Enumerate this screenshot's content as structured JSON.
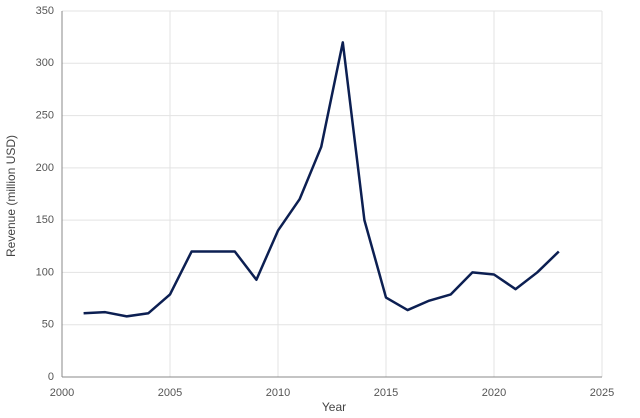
{
  "chart_data": {
    "type": "line",
    "x_label": "Year",
    "y_label": "Revenue (million USD)",
    "x": [
      2001,
      2002,
      2003,
      2004,
      2005,
      2006,
      2007,
      2008,
      2009,
      2010,
      2011,
      2012,
      2013,
      2014,
      2015,
      2016,
      2017,
      2018,
      2019,
      2020,
      2021,
      2022,
      2023
    ],
    "values": [
      61,
      62,
      58,
      61,
      79,
      120,
      120,
      120,
      93,
      140,
      170,
      220,
      320,
      150,
      76,
      64,
      73,
      79,
      100,
      98,
      84,
      100,
      120
    ],
    "color": "#0c1f52",
    "xlim": [
      2000,
      2025
    ],
    "xticks": [
      2000,
      2005,
      2010,
      2015,
      2020,
      2025
    ],
    "ylim": [
      0,
      350
    ],
    "yticks": [
      0,
      50,
      100,
      150,
      200,
      250,
      300,
      350
    ],
    "grid": true
  }
}
